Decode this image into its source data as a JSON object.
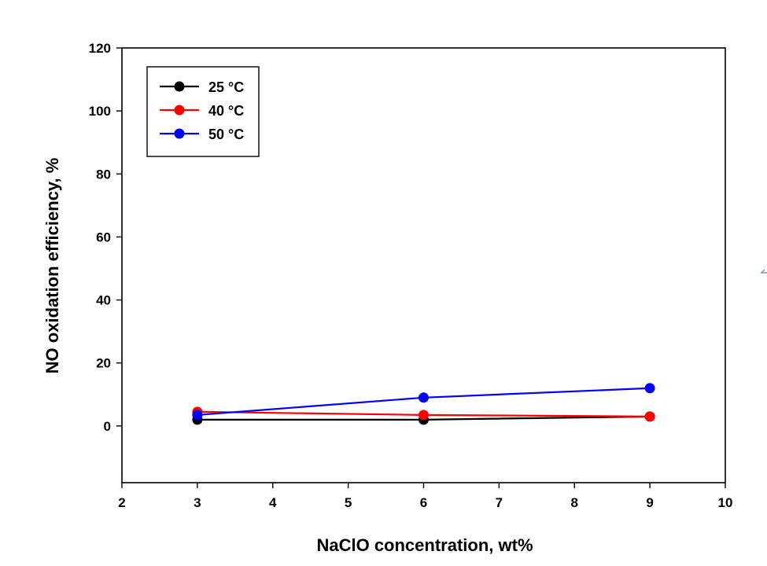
{
  "chart_data": {
    "type": "line",
    "title": "",
    "xlabel": "NaClO concentration, wt%",
    "ylabel": "NO oxidation efficiency, %",
    "xlim": [
      2,
      10
    ],
    "ylim": [
      -18,
      120
    ],
    "xticks": [
      2,
      3,
      4,
      5,
      6,
      7,
      8,
      9,
      10
    ],
    "yticks": [
      0,
      20,
      40,
      60,
      80,
      100,
      120
    ],
    "grid": false,
    "legend_position": "top-left",
    "series": [
      {
        "name": "25 °C",
        "color": "#000000",
        "x": [
          3,
          6,
          9
        ],
        "y": [
          2,
          2,
          3
        ]
      },
      {
        "name": "40 °C",
        "color": "#ff0000",
        "x": [
          3,
          6,
          9
        ],
        "y": [
          4.5,
          3.5,
          3
        ]
      },
      {
        "name": "50 °C",
        "color": "#0000ff",
        "x": [
          3,
          6,
          9
        ],
        "y": [
          3.5,
          9,
          12
        ]
      }
    ]
  }
}
